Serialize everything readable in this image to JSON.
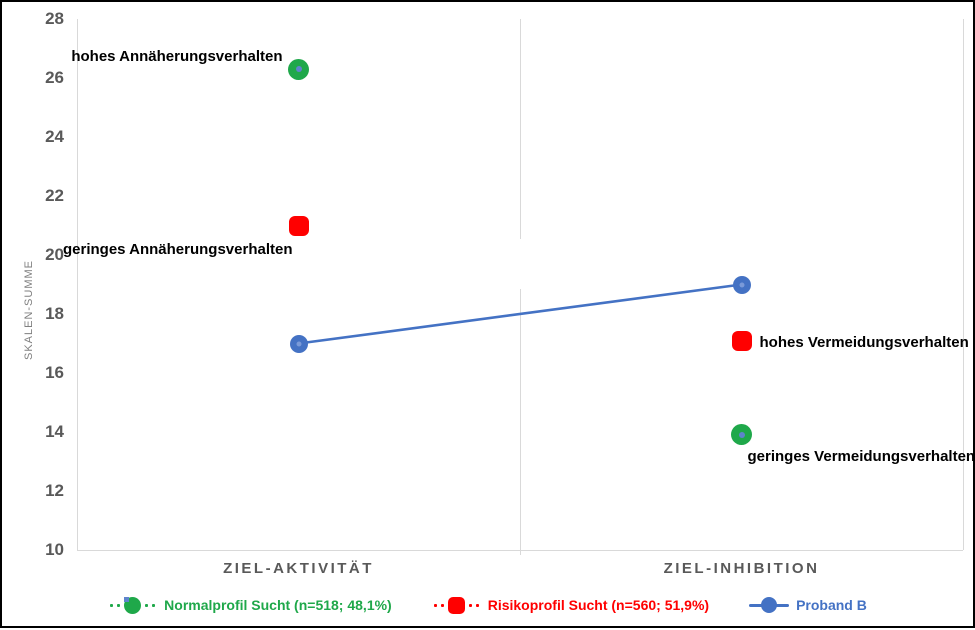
{
  "chart_data": {
    "type": "line",
    "title": "",
    "ylabel": "SKALEN-SUMME",
    "ylim": [
      10,
      28
    ],
    "ytick_step": 2,
    "grid": "vertical category separators only, no horizontal gridlines",
    "legend_position": "bottom",
    "categories": [
      "ZIEL-AKTIVITÄT",
      "ZIEL-INHIBITION"
    ],
    "series": [
      {
        "name": "Normalprofil Sucht (n=518; 48,1%)",
        "color": "#1FA84A",
        "marker": "circle",
        "marker_size": 21,
        "marker_inner_dot": "#5E84CC",
        "line_style": "dotted",
        "line_visible_in_plot": false,
        "values": [
          26.3,
          13.9
        ]
      },
      {
        "name": "Risikoprofil Sucht (n=560; 51,9%)",
        "color": "#FF0000",
        "marker": "rounded-square",
        "marker_size": 20,
        "marker_inner_dot": null,
        "line_style": "dotted",
        "line_visible_in_plot": false,
        "values": [
          21.0,
          17.1
        ]
      },
      {
        "name": "Proband B",
        "color": "#4472C4",
        "marker": "circle",
        "marker_size": 18,
        "marker_inner_dot": "#7A9AD8",
        "line_style": "solid",
        "line_visible_in_plot": true,
        "values": [
          17.0,
          19.0
        ]
      }
    ],
    "point_annotations": [
      {
        "text": "hohes Annäherungsverhalten",
        "series": 0,
        "category": 0,
        "placement": "left-of-point"
      },
      {
        "text": "geringes Annäherungsverhalten",
        "series": 1,
        "category": 0,
        "placement": "below-left-of-point"
      },
      {
        "text": "hohes Vermeidungsverhalten",
        "series": 1,
        "category": 1,
        "placement": "right-of-point"
      },
      {
        "text": "geringes Vermeidungsverhalten",
        "series": 0,
        "category": 1,
        "placement": "below-right-of-point"
      }
    ]
  },
  "colors": {
    "axis_text": "#595959",
    "axis_title_text": "#7F7F7F",
    "axis_line": "#D9D9D9",
    "annotation_text": "#000000",
    "background": "#FFFFFF",
    "border": "#000000"
  }
}
